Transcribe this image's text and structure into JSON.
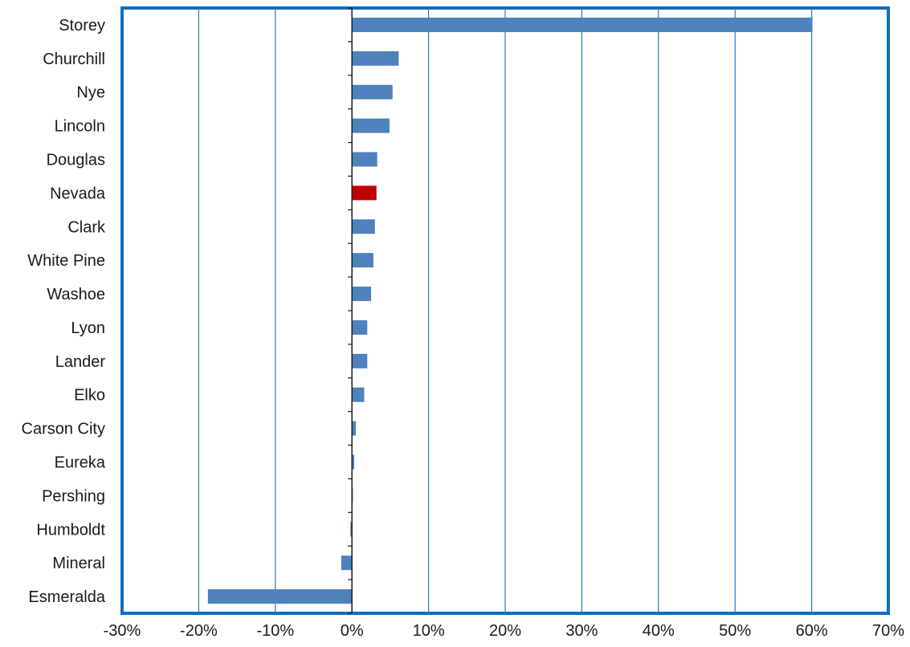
{
  "chart_data": {
    "type": "bar",
    "orientation": "horizontal",
    "title": "",
    "xlabel": "",
    "ylabel": "",
    "categories": [
      "Storey",
      "Churchill",
      "Nye",
      "Lincoln",
      "Douglas",
      "Nevada",
      "Clark",
      "White Pine",
      "Washoe",
      "Lyon",
      "Lander",
      "Elko",
      "Carson City",
      "Eureka",
      "Pershing",
      "Humboldt",
      "Mineral",
      "Esmeralda"
    ],
    "values": [
      60.1,
      6.1,
      5.3,
      4.9,
      3.3,
      3.2,
      3.0,
      2.8,
      2.5,
      2.0,
      2.0,
      1.6,
      0.5,
      0.3,
      0.1,
      -0.2,
      -1.4,
      -18.8
    ],
    "highlight": "Nevada",
    "xlim": [
      -30,
      70
    ],
    "xticks": [
      -30,
      -20,
      -10,
      0,
      10,
      20,
      30,
      40,
      50,
      60,
      70
    ],
    "xtick_labels": [
      "-30%",
      "-20%",
      "-10%",
      "0%",
      "10%",
      "20%",
      "30%",
      "40%",
      "50%",
      "60%",
      "70%"
    ],
    "grid": "vertical",
    "legend": "none",
    "colors": {
      "bar": "#4F81BD",
      "highlight": "#C00000",
      "grid": "#1F7BC4",
      "frame": "#0E6FC0",
      "axis": "#1a1a1a"
    }
  }
}
